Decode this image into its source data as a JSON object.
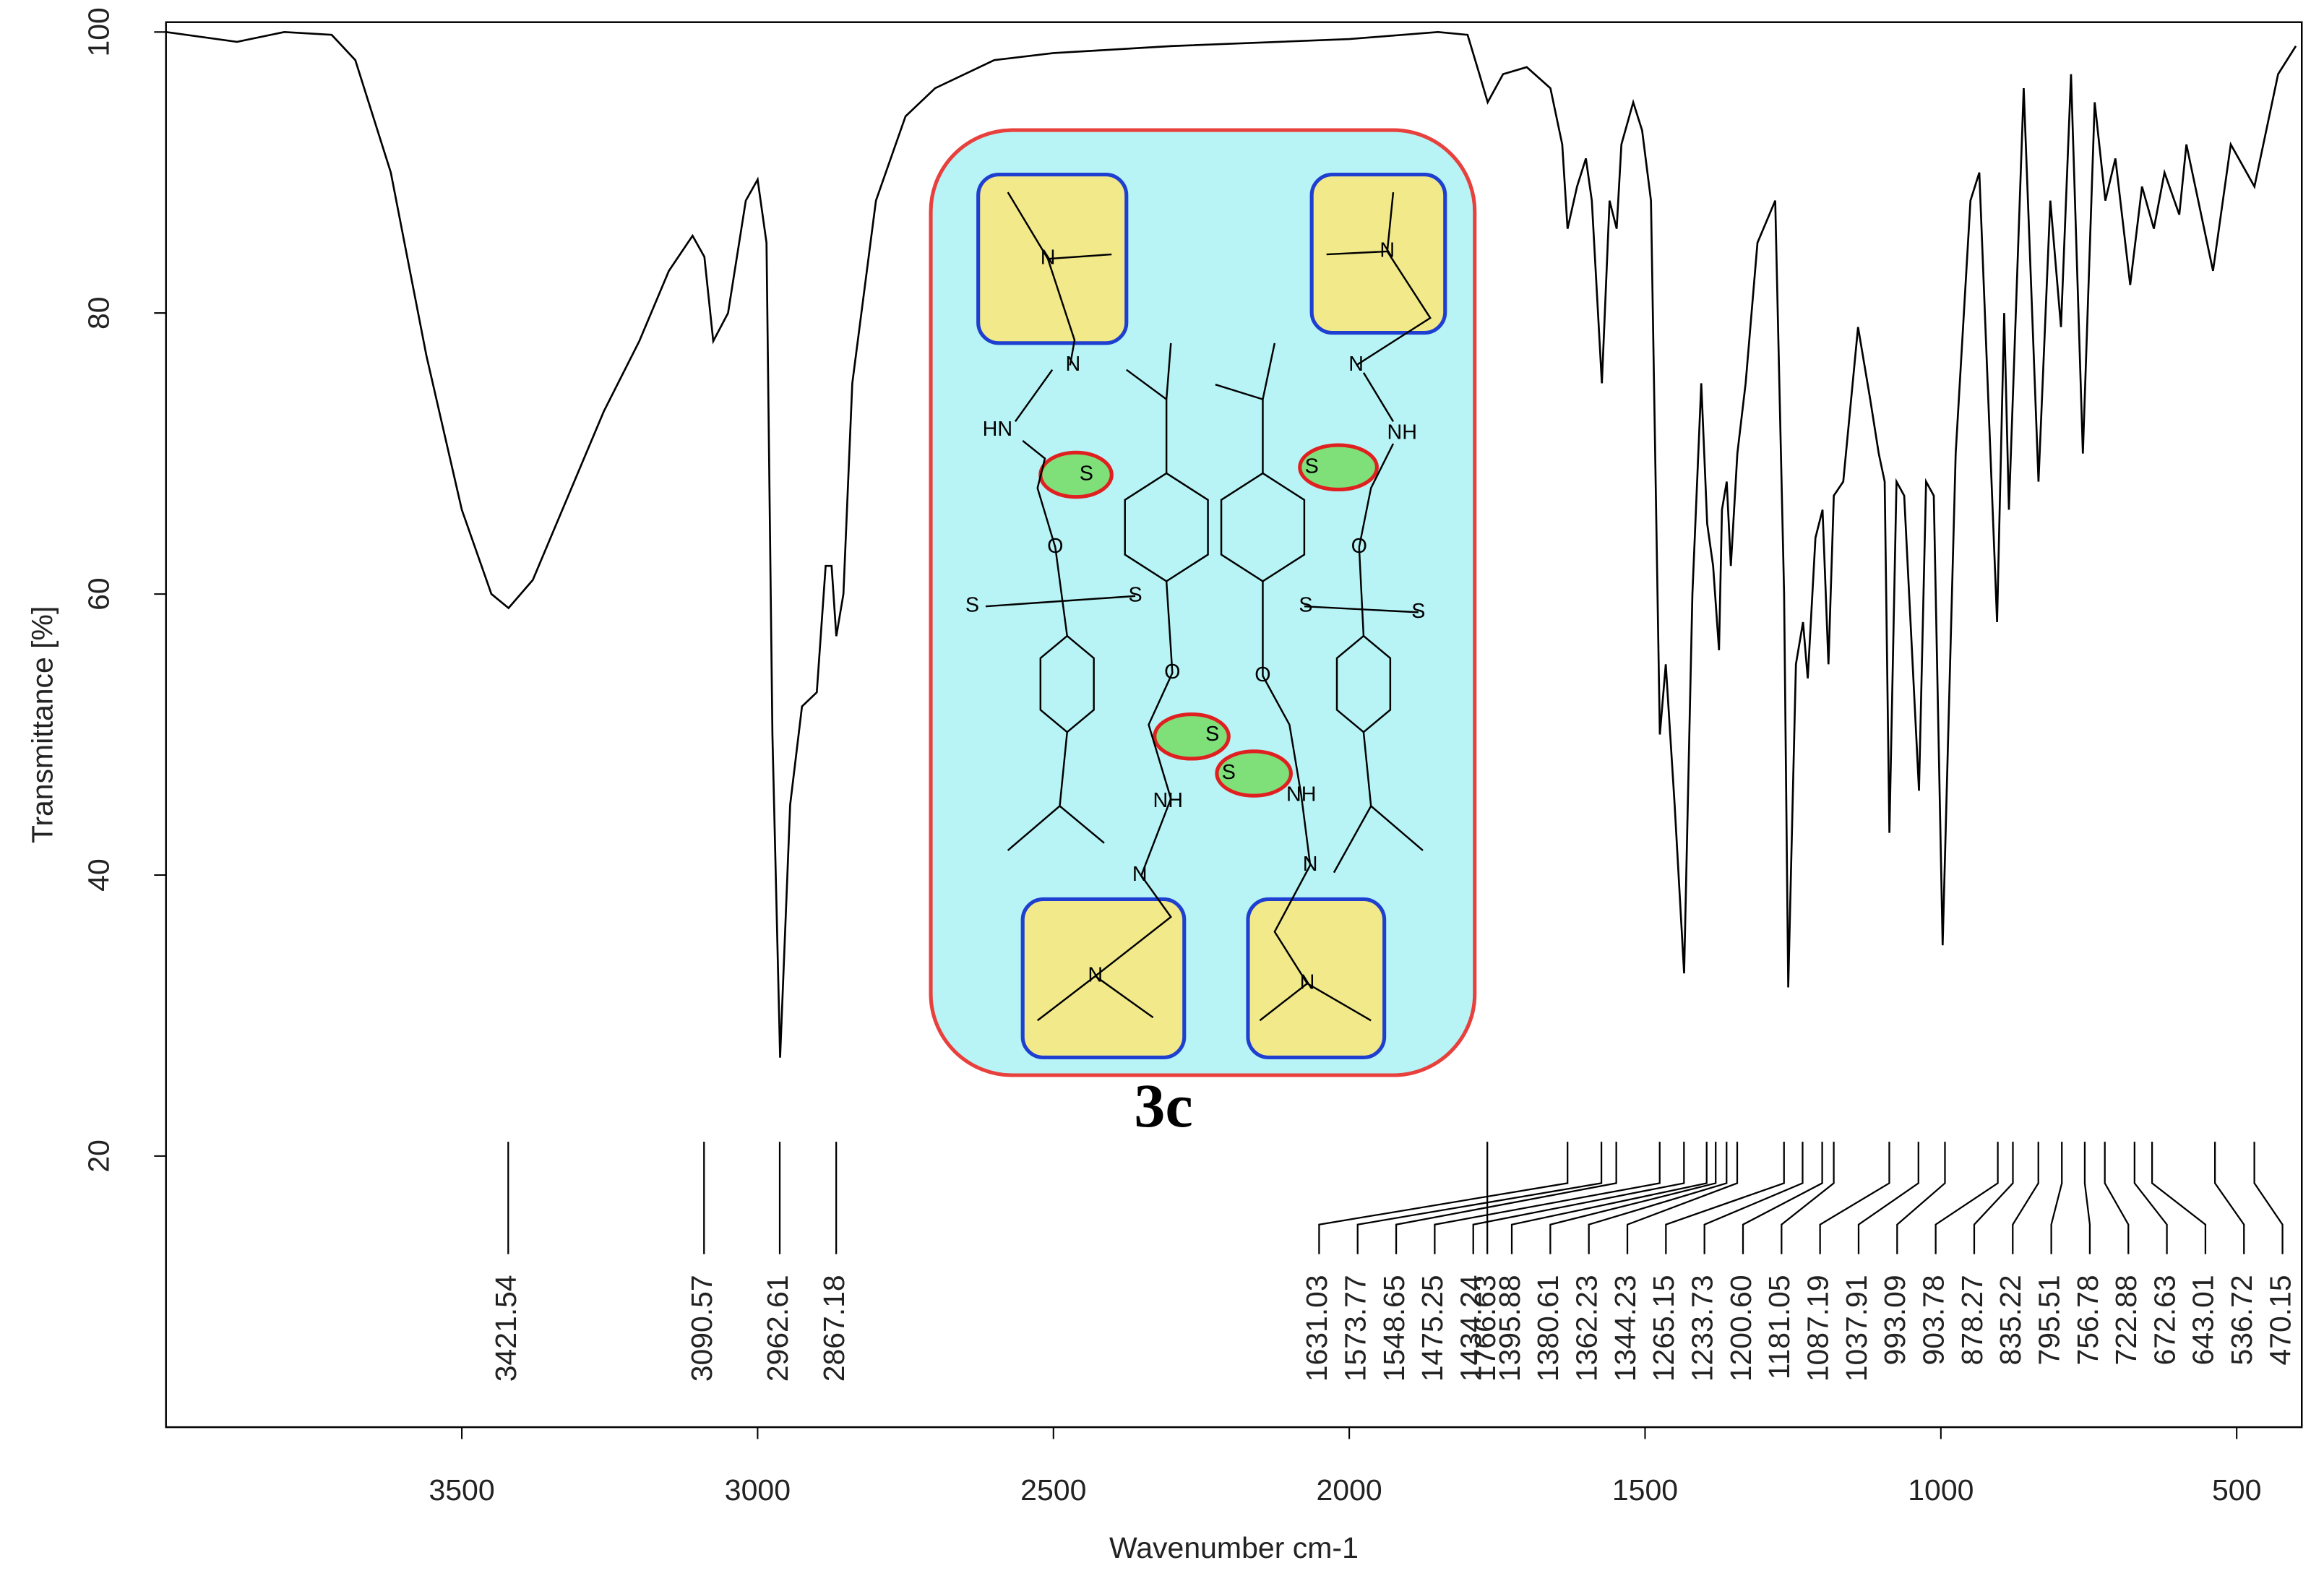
{
  "chart_data": {
    "type": "line",
    "x_label": "Wavenumber cm-1",
    "y_label": "Transmittance [%]",
    "xlim": [
      4000,
      390
    ],
    "xticks": [
      3500,
      3000,
      2500,
      2000,
      1500,
      1000,
      500
    ],
    "ylim": [
      0.7,
      100.7
    ],
    "yticks": [
      20,
      40,
      60,
      80,
      100
    ],
    "color": "#000000",
    "x": [
      4000,
      3880,
      3800,
      3720,
      3680,
      3620,
      3560,
      3500,
      3450,
      3421,
      3380,
      3320,
      3260,
      3200,
      3150,
      3110,
      3090,
      3075,
      3050,
      3020,
      3000,
      2985,
      2975,
      2962,
      2945,
      2925,
      2900,
      2885,
      2875,
      2867,
      2855,
      2840,
      2800,
      2750,
      2700,
      2600,
      2500,
      2300,
      2000,
      1850,
      1800,
      1780,
      1766,
      1740,
      1700,
      1660,
      1640,
      1631,
      1615,
      1600,
      1590,
      1573,
      1560,
      1548,
      1540,
      1520,
      1505,
      1490,
      1475,
      1465,
      1450,
      1434,
      1420,
      1405,
      1395,
      1385,
      1375,
      1370,
      1362,
      1355,
      1344,
      1330,
      1310,
      1290,
      1280,
      1265,
      1258,
      1245,
      1233,
      1225,
      1212,
      1200,
      1190,
      1181,
      1165,
      1140,
      1120,
      1105,
      1095,
      1087,
      1075,
      1062,
      1037,
      1025,
      1012,
      997,
      975,
      950,
      935,
      905,
      893,
      885,
      860,
      835,
      815,
      797,
      780,
      760,
      740,
      722,
      705,
      680,
      660,
      640,
      622,
      597,
      585,
      540,
      510,
      470,
      430,
      400
    ],
    "values": [
      100,
      99.3,
      100,
      99.8,
      98,
      90,
      77,
      66,
      60,
      59,
      61,
      67,
      73,
      78,
      83,
      85.5,
      84,
      78,
      80,
      88,
      89.5,
      85,
      50,
      27,
      45,
      52,
      53,
      62,
      62,
      57,
      60,
      75,
      88,
      94,
      96,
      98,
      98.5,
      99,
      99.5,
      100,
      99.8,
      97,
      95,
      97,
      97.5,
      96,
      92,
      86,
      89,
      91,
      88,
      75,
      88,
      86,
      92,
      95,
      93,
      88,
      50,
      55,
      45,
      33,
      60,
      75,
      65,
      62,
      56,
      66,
      68,
      62,
      70,
      75,
      85,
      87,
      88,
      60,
      32,
      55,
      58,
      54,
      64,
      66,
      55,
      67,
      68,
      79,
      74,
      70,
      68,
      43,
      68,
      67,
      46,
      68,
      67,
      35,
      70,
      88,
      90,
      58,
      80,
      66,
      96,
      68,
      88,
      79,
      97,
      70,
      95,
      88,
      91,
      82,
      89,
      86,
      90,
      87,
      92,
      83,
      92,
      89,
      97,
      99
    ],
    "peak_labels": [
      3421.54,
      3090.57,
      2962.61,
      2867.18,
      1766.63,
      1631.03,
      1573.77,
      1548.65,
      1475.25,
      1434.24,
      1395.88,
      1380.61,
      1362.23,
      1344.23,
      1265.15,
      1233.73,
      {
        "value": 1200.6,
        "label": "1200.60"
      },
      1181.05,
      1087.19,
      1037.91,
      993.09,
      903.78,
      878.27,
      835.22,
      795.51,
      756.78,
      722.88,
      672.63,
      643.01,
      536.72,
      470.15
    ]
  },
  "inset": {
    "label": "3c",
    "atoms": [
      "N",
      "N",
      "HN",
      "S",
      "O",
      "S",
      "S",
      "N",
      "N",
      "NH",
      "S",
      "O",
      "S",
      "S",
      "O",
      "O",
      "S",
      "S",
      "NH",
      "NH",
      "N",
      "N",
      "N",
      "N"
    ]
  }
}
